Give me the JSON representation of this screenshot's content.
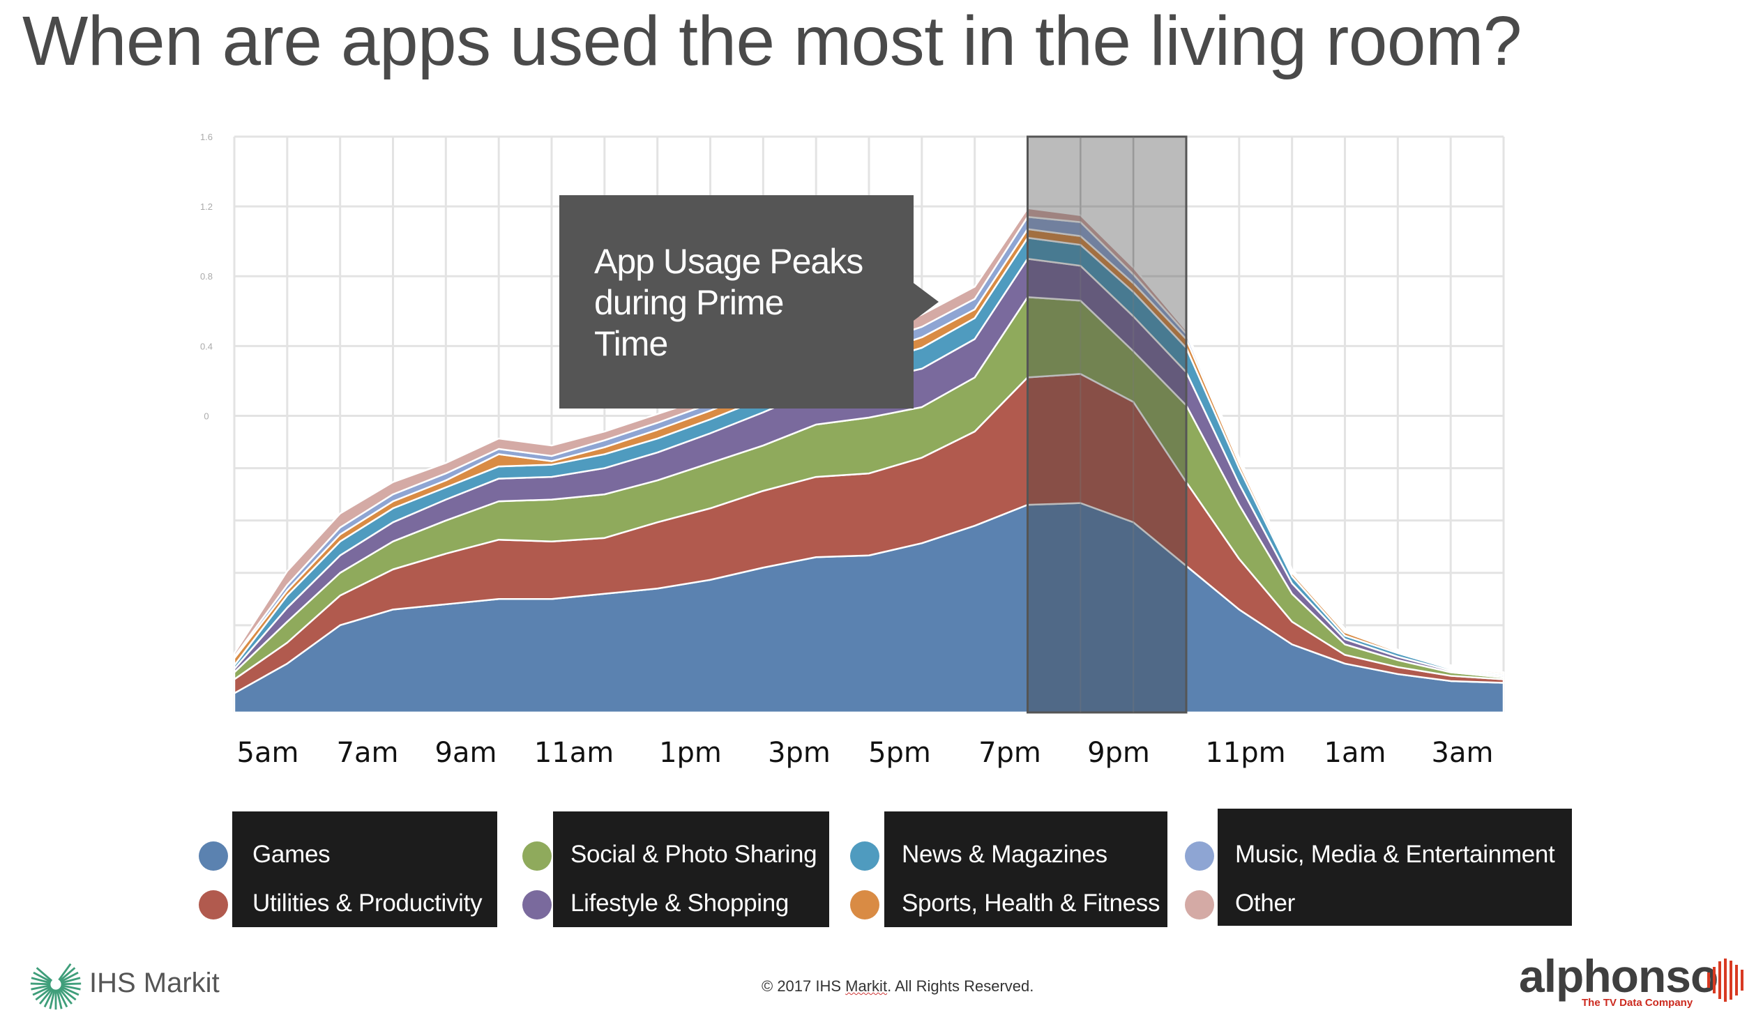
{
  "slide": {
    "title": "When are apps used the most in the living room?",
    "callout": [
      "App Usage Peaks",
      "during Prime",
      "Time"
    ],
    "copyright_prefix": "© 2017 IHS ",
    "copyright_brand": "Markit",
    "copyright_suffix": ". All Rights Reserved.",
    "logo_left": "IHS Markit",
    "logo_right": "alphonso",
    "logo_right_tagline": "The TV Data Company"
  },
  "chart_data": {
    "type": "area",
    "stacked": true,
    "title": "",
    "xlabel": "",
    "ylabel": "",
    "ylim": [
      -1.7,
      1.6
    ],
    "grid": true,
    "y_ticks": [
      {
        "value": 1.6,
        "label": "1.6"
      },
      {
        "value": 1.2,
        "label": "1.2"
      },
      {
        "value": 0.8,
        "label": "0.8"
      },
      {
        "value": 0.4,
        "label": "0.4"
      },
      {
        "value": 0.0,
        "label": "0"
      }
    ],
    "x_tick_labels": [
      "5am",
      "7am",
      "9am",
      "11am",
      "1pm",
      "3pm",
      "5pm",
      "7pm",
      "9pm",
      "11pm",
      "1am",
      "3am"
    ],
    "highlight_band": {
      "from": "7pm",
      "to": "10pm",
      "label": "Prime Time"
    },
    "legend_placement": "bottom",
    "x": [
      "4am",
      "5am",
      "6am",
      "7am",
      "8am",
      "9am",
      "10am",
      "11am",
      "12pm",
      "1pm",
      "2pm",
      "3pm",
      "4pm",
      "5pm",
      "6pm",
      "7pm",
      "8pm",
      "9pm",
      "10pm",
      "11pm",
      "12am",
      "1am",
      "2am",
      "3am",
      "4am"
    ],
    "series": [
      {
        "name": "Games",
        "color": "#5b82b0",
        "values": [
          -1.59,
          -1.42,
          -1.2,
          -1.11,
          -1.08,
          -1.05,
          -1.05,
          -1.02,
          -0.99,
          -0.94,
          -0.87,
          -0.81,
          -0.8,
          -0.73,
          -0.63,
          -0.51,
          -0.5,
          -0.61,
          -0.86,
          -1.11,
          -1.31,
          -1.42,
          -1.48,
          -1.52,
          -1.53
        ]
      },
      {
        "name": "Utilities & Productivity",
        "color": "#b15a4e",
        "values": [
          0.08,
          0.12,
          0.17,
          0.23,
          0.29,
          0.34,
          0.33,
          0.32,
          0.38,
          0.41,
          0.44,
          0.46,
          0.47,
          0.49,
          0.54,
          0.73,
          0.74,
          0.69,
          0.48,
          0.29,
          0.13,
          0.05,
          0.04,
          0.03,
          0.02
        ]
      },
      {
        "name": "Social & Photo Sharing",
        "color": "#8faa5c",
        "values": [
          0.04,
          0.12,
          0.13,
          0.16,
          0.19,
          0.22,
          0.24,
          0.25,
          0.24,
          0.26,
          0.26,
          0.3,
          0.32,
          0.29,
          0.31,
          0.46,
          0.42,
          0.29,
          0.44,
          0.31,
          0.16,
          0.06,
          0.04,
          0.02,
          0.01
        ]
      },
      {
        "name": "Lifestyle & Shopping",
        "color": "#7a6a9d",
        "values": [
          0.02,
          0.08,
          0.1,
          0.11,
          0.12,
          0.13,
          0.13,
          0.15,
          0.16,
          0.17,
          0.19,
          0.2,
          0.21,
          0.22,
          0.22,
          0.22,
          0.2,
          0.2,
          0.19,
          0.12,
          0.06,
          0.03,
          0.02,
          0.01,
          0.01
        ]
      },
      {
        "name": "News & Magazines",
        "color": "#4f9bbf",
        "values": [
          0.02,
          0.07,
          0.08,
          0.08,
          0.07,
          0.07,
          0.07,
          0.08,
          0.08,
          0.08,
          0.08,
          0.1,
          0.1,
          0.12,
          0.12,
          0.12,
          0.12,
          0.14,
          0.14,
          0.09,
          0.04,
          0.02,
          0.02,
          0.01,
          0.01
        ]
      },
      {
        "name": "Sports, Health & Fitness",
        "color": "#d98b44",
        "values": [
          0.04,
          0.03,
          0.04,
          0.04,
          0.04,
          0.07,
          0.02,
          0.04,
          0.05,
          0.05,
          0.05,
          0.05,
          0.05,
          0.06,
          0.05,
          0.05,
          0.05,
          0.05,
          0.05,
          0.03,
          0.02,
          0.02,
          0.01,
          0.01,
          0.01
        ]
      },
      {
        "name": "Music, Media & Entertainment",
        "color": "#8ea5d3",
        "values": [
          0.01,
          0.03,
          0.04,
          0.04,
          0.04,
          0.03,
          0.03,
          0.04,
          0.04,
          0.04,
          0.04,
          0.05,
          0.06,
          0.06,
          0.06,
          0.07,
          0.08,
          0.05,
          0.03,
          0.02,
          0.01,
          0.01,
          0.01,
          0.01,
          0.0
        ]
      },
      {
        "name": "Other",
        "color": "#d4aaa5",
        "values": [
          0.02,
          0.08,
          0.08,
          0.07,
          0.06,
          0.06,
          0.06,
          0.05,
          0.05,
          0.04,
          0.05,
          0.05,
          0.06,
          0.07,
          0.07,
          0.05,
          0.04,
          0.04,
          0.02,
          0.01,
          0.01,
          0.01,
          0.0,
          0.0,
          0.0
        ]
      }
    ]
  },
  "legend": [
    {
      "name": "Games",
      "color": "#5b82b0"
    },
    {
      "name": "Utilities & Productivity",
      "color": "#b15a4e"
    },
    {
      "name": "Social & Photo Sharing",
      "color": "#8faa5c"
    },
    {
      "name": "Lifestyle & Shopping",
      "color": "#7a6a9d"
    },
    {
      "name": "News & Magazines",
      "color": "#4f9bbf"
    },
    {
      "name": "Sports, Health & Fitness",
      "color": "#d98b44"
    },
    {
      "name": "Music, Media & Entertainment",
      "color": "#8ea5d3"
    },
    {
      "name": "Other",
      "color": "#d4aaa5"
    }
  ]
}
